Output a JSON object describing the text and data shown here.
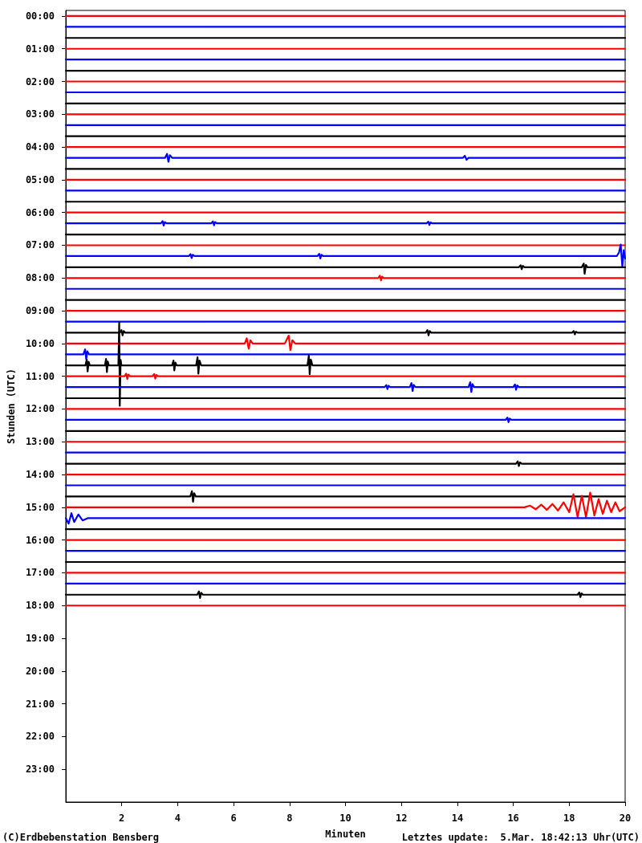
{
  "chart_data": {
    "type": "line",
    "xlabel": "Minuten",
    "ylabel": "Stunden (UTC)",
    "annotations": [
      "(C)Erdbebenstation Bensberg",
      "Letztes update:  5.Mar. 18:42:13 Uhr(UTC)"
    ],
    "xlim": [
      0,
      20
    ],
    "xticks": [
      2,
      4,
      6,
      8,
      10,
      12,
      14,
      16,
      18,
      20
    ],
    "ylim": [
      24,
      -0.17
    ],
    "yticks": [
      {
        "value": 0,
        "label": "00:00"
      },
      {
        "value": 1,
        "label": "01:00"
      },
      {
        "value": 2,
        "label": "02:00"
      },
      {
        "value": 3,
        "label": "03:00"
      },
      {
        "value": 4,
        "label": "04:00"
      },
      {
        "value": 5,
        "label": "05:00"
      },
      {
        "value": 6,
        "label": "06:00"
      },
      {
        "value": 7,
        "label": "07:00"
      },
      {
        "value": 8,
        "label": "08:00"
      },
      {
        "value": 9,
        "label": "09:00"
      },
      {
        "value": 10,
        "label": "10:00"
      },
      {
        "value": 11,
        "label": "11:00"
      },
      {
        "value": 12,
        "label": "12:00"
      },
      {
        "value": 13,
        "label": "13:00"
      },
      {
        "value": 14,
        "label": "14:00"
      },
      {
        "value": 15,
        "label": "15:00"
      },
      {
        "value": 16,
        "label": "16:00"
      },
      {
        "value": 17,
        "label": "17:00"
      },
      {
        "value": 18,
        "label": "18:00"
      },
      {
        "value": 19,
        "label": "19:00"
      },
      {
        "value": 20,
        "label": "20:00"
      },
      {
        "value": 21,
        "label": "21:00"
      },
      {
        "value": 22,
        "label": "22:00"
      },
      {
        "value": 23,
        "label": "23:00"
      }
    ],
    "marker": "none",
    "x": [
      0,
      20
    ],
    "series": [
      {
        "color": "#ff0000",
        "values": [
          0,
          0
        ]
      },
      {
        "color": "#0000ff",
        "values": [
          0.33,
          0.33
        ]
      },
      {
        "color": "#000000",
        "values": [
          0.67,
          0.67
        ]
      },
      {
        "color": "#ff0000",
        "values": [
          1,
          1
        ]
      },
      {
        "color": "#0000ff",
        "values": [
          1.33,
          1.33
        ]
      },
      {
        "color": "#000000",
        "values": [
          1.67,
          1.67
        ]
      },
      {
        "color": "#ff0000",
        "values": [
          2,
          2
        ]
      },
      {
        "color": "#0000ff",
        "values": [
          2.33,
          2.33
        ]
      },
      {
        "color": "#000000",
        "values": [
          2.67,
          2.67
        ]
      },
      {
        "color": "#ff0000",
        "values": [
          3,
          3
        ]
      },
      {
        "color": "#0000ff",
        "values": [
          3.33,
          3.33
        ]
      },
      {
        "color": "#000000",
        "values": [
          3.67,
          3.67
        ]
      },
      {
        "color": "#ff0000",
        "values": [
          4,
          4
        ]
      },
      {
        "color": "#0000ff",
        "x": [
          0,
          3.55,
          3.62,
          3.67,
          3.72,
          3.8,
          14.2,
          14.27,
          14.33,
          14.4,
          20
        ],
        "values": [
          4.33,
          4.33,
          4.21,
          4.45,
          4.25,
          4.33,
          4.33,
          4.27,
          4.39,
          4.33,
          4.33
        ]
      },
      {
        "color": "#000000",
        "values": [
          4.67,
          4.67
        ]
      },
      {
        "color": "#ff0000",
        "values": [
          5,
          5
        ]
      },
      {
        "color": "#0000ff",
        "values": [
          5.33,
          5.33
        ]
      },
      {
        "color": "#000000",
        "values": [
          5.67,
          5.67
        ]
      },
      {
        "color": "#ff0000",
        "values": [
          6,
          6
        ]
      },
      {
        "color": "#0000ff",
        "x": [
          0,
          3.4,
          3.46,
          3.5,
          3.54,
          3.6,
          5.2,
          5.26,
          5.3,
          5.34,
          5.4,
          12.9,
          12.96,
          13,
          13.04,
          13.1,
          20
        ],
        "values": [
          6.33,
          6.33,
          6.26,
          6.4,
          6.29,
          6.33,
          6.33,
          6.27,
          6.39,
          6.29,
          6.33,
          6.33,
          6.28,
          6.38,
          6.3,
          6.33,
          6.33
        ]
      },
      {
        "color": "#000000",
        "values": [
          6.67,
          6.67
        ]
      },
      {
        "color": "#ff0000",
        "values": [
          7,
          7
        ]
      },
      {
        "color": "#0000ff",
        "x": [
          0,
          4.4,
          4.46,
          4.5,
          4.54,
          4.6,
          9,
          9.06,
          9.1,
          9.14,
          9.2,
          19.7,
          19.78,
          19.84,
          19.9,
          19.95,
          20
        ],
        "values": [
          7.33,
          7.33,
          7.27,
          7.39,
          7.29,
          7.33,
          7.33,
          7.26,
          7.4,
          7.29,
          7.33,
          7.33,
          7.22,
          6.98,
          7.65,
          7.15,
          7.4
        ]
      },
      {
        "color": "#000000",
        "x": [
          0,
          16.2,
          16.26,
          16.3,
          16.34,
          16.4,
          18.45,
          18.52,
          18.55,
          18.6,
          18.65,
          20
        ],
        "values": [
          7.67,
          7.67,
          7.61,
          7.73,
          7.63,
          7.67,
          7.67,
          7.56,
          7.87,
          7.6,
          7.67,
          7.67
        ]
      },
      {
        "color": "#ff0000",
        "x": [
          0,
          11.17,
          11.23,
          11.27,
          11.31,
          11.37,
          20
        ],
        "values": [
          8,
          8,
          7.93,
          8.07,
          7.96,
          8,
          8
        ]
      },
      {
        "color": "#0000ff",
        "values": [
          8.33,
          8.33
        ]
      },
      {
        "color": "#000000",
        "values": [
          8.67,
          8.67
        ]
      },
      {
        "color": "#ff0000",
        "values": [
          9,
          9
        ]
      },
      {
        "color": "#0000ff",
        "values": [
          9.33,
          9.33
        ]
      },
      {
        "color": "#000000",
        "x": [
          0,
          1.93,
          1.99,
          2.03,
          2.07,
          2.13,
          12.87,
          12.93,
          12.97,
          13.01,
          13.07,
          18.1,
          18.16,
          18.2,
          18.24,
          18.3,
          20
        ],
        "values": [
          9.67,
          9.67,
          9.59,
          9.75,
          9.62,
          9.67,
          9.67,
          9.59,
          9.75,
          9.62,
          9.67,
          9.67,
          9.62,
          9.72,
          9.64,
          9.67,
          9.67
        ]
      },
      {
        "color": "#ff0000",
        "x": [
          0,
          6.4,
          6.47,
          6.54,
          6.6,
          6.68,
          7.83,
          7.9,
          7.97,
          8.03,
          8.1,
          8.2,
          20
        ],
        "values": [
          10,
          10,
          9.84,
          10.16,
          9.9,
          10,
          10,
          9.88,
          9.76,
          10.2,
          9.9,
          10,
          10
        ]
      },
      {
        "color": "#0000ff",
        "x": [
          0,
          0.63,
          0.69,
          0.73,
          0.77,
          0.83,
          20
        ],
        "values": [
          10.33,
          10.33,
          10.18,
          10.48,
          10.24,
          10.33,
          10.33
        ]
      },
      {
        "color": "#000000",
        "x": [
          0,
          0.7,
          0.75,
          0.78,
          0.82,
          0.86,
          1.4,
          1.44,
          1.47,
          1.5,
          1.54,
          1.88,
          1.91,
          1.93,
          1.96,
          1.99,
          3.8,
          3.85,
          3.88,
          3.92,
          3.96,
          4.66,
          4.71,
          4.74,
          4.78,
          4.84,
          8.64,
          8.69,
          8.72,
          8.76,
          8.82,
          20
        ],
        "values": [
          10.67,
          10.67,
          10.49,
          10.85,
          10.56,
          10.67,
          10.67,
          10.47,
          10.87,
          10.55,
          10.67,
          10.67,
          9.35,
          11.9,
          10.5,
          10.67,
          10.67,
          10.52,
          10.82,
          10.58,
          10.67,
          10.67,
          10.42,
          10.92,
          10.52,
          10.67,
          10.67,
          10.37,
          10.94,
          10.49,
          10.67,
          10.67
        ]
      },
      {
        "color": "#ff0000",
        "x": [
          0,
          2.1,
          2.16,
          2.2,
          2.24,
          2.3,
          3.1,
          3.16,
          3.2,
          3.24,
          3.3,
          20
        ],
        "values": [
          11,
          11,
          10.92,
          11.08,
          10.95,
          11,
          11,
          10.93,
          11.07,
          10.96,
          11,
          11
        ]
      },
      {
        "color": "#0000ff",
        "x": [
          0,
          11.4,
          11.46,
          11.5,
          11.54,
          11.6,
          12.3,
          12.36,
          12.4,
          12.44,
          12.5,
          14.4,
          14.46,
          14.5,
          14.54,
          14.6,
          16,
          16.06,
          16.1,
          16.14,
          16.2,
          20
        ],
        "values": [
          11.33,
          11.33,
          11.27,
          11.39,
          11.29,
          11.33,
          11.33,
          11.21,
          11.45,
          11.26,
          11.33,
          11.33,
          11.18,
          11.48,
          11.24,
          11.33,
          11.33,
          11.25,
          11.41,
          11.28,
          11.33,
          11.33
        ]
      },
      {
        "color": "#000000",
        "values": [
          11.67,
          11.67
        ]
      },
      {
        "color": "#ff0000",
        "values": [
          12,
          12
        ]
      },
      {
        "color": "#0000ff",
        "x": [
          0,
          15.73,
          15.79,
          15.83,
          15.87,
          15.93,
          20
        ],
        "values": [
          12.33,
          12.33,
          12.26,
          12.4,
          12.29,
          12.33,
          12.33
        ]
      },
      {
        "color": "#000000",
        "values": [
          12.67,
          12.67
        ]
      },
      {
        "color": "#ff0000",
        "values": [
          13,
          13
        ]
      },
      {
        "color": "#0000ff",
        "values": [
          13.33,
          13.33
        ]
      },
      {
        "color": "#000000",
        "x": [
          0,
          16.1,
          16.16,
          16.2,
          16.24,
          16.3,
          20
        ],
        "values": [
          13.67,
          13.67,
          13.6,
          13.74,
          13.63,
          13.67,
          13.67
        ]
      },
      {
        "color": "#ff0000",
        "values": [
          14,
          14
        ]
      },
      {
        "color": "#0000ff",
        "values": [
          14.33,
          14.33
        ]
      },
      {
        "color": "#000000",
        "x": [
          0,
          4.45,
          4.51,
          4.55,
          4.59,
          4.65,
          20
        ],
        "values": [
          14.67,
          14.67,
          14.51,
          14.83,
          14.57,
          14.67,
          14.67
        ]
      },
      {
        "color": "#ff0000",
        "x": [
          0,
          16.4,
          16.6,
          16.8,
          17,
          17.2,
          17.4,
          17.6,
          17.8,
          18,
          18.15,
          18.3,
          18.45,
          18.6,
          18.75,
          18.9,
          19.05,
          19.2,
          19.35,
          19.5,
          19.65,
          19.8,
          20
        ],
        "values": [
          15,
          15,
          14.95,
          15.06,
          14.92,
          15.08,
          14.9,
          15.1,
          14.85,
          15.15,
          14.6,
          15.3,
          14.65,
          15.3,
          14.55,
          15.25,
          14.75,
          15.2,
          14.8,
          15.15,
          14.85,
          15.12,
          15
        ]
      },
      {
        "color": "#0000ff",
        "x": [
          0,
          0.1,
          0.2,
          0.3,
          0.45,
          0.6,
          0.8,
          20
        ],
        "values": [
          15.33,
          15.5,
          15.18,
          15.45,
          15.22,
          15.4,
          15.33,
          15.33
        ]
      },
      {
        "color": "#000000",
        "values": [
          15.67,
          15.67
        ]
      },
      {
        "color": "#ff0000",
        "values": [
          16,
          16
        ]
      },
      {
        "color": "#0000ff",
        "values": [
          16.33,
          16.33
        ]
      },
      {
        "color": "#000000",
        "values": [
          16.67,
          16.67
        ]
      },
      {
        "color": "#ff0000",
        "values": [
          17,
          17
        ]
      },
      {
        "color": "#0000ff",
        "values": [
          17.33,
          17.33
        ]
      },
      {
        "color": "#000000",
        "x": [
          0,
          4.7,
          4.76,
          4.8,
          4.84,
          4.9,
          18.3,
          18.36,
          18.4,
          18.44,
          18.5,
          20
        ],
        "values": [
          17.67,
          17.67,
          17.57,
          17.77,
          17.61,
          17.67,
          17.67,
          17.6,
          17.74,
          17.63,
          17.67,
          17.67
        ]
      },
      {
        "color": "#ff0000",
        "values": [
          18,
          18
        ]
      }
    ]
  }
}
